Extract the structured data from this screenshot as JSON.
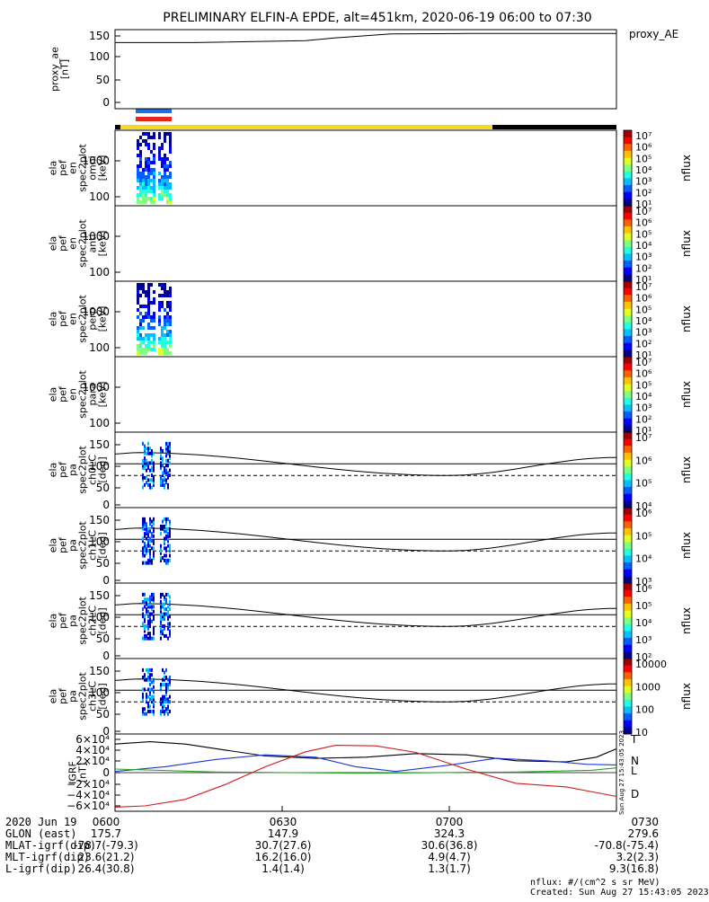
{
  "title": "PRELIMINARY ELFIN-A EPDE, alt=451km, 2020-06-19 06:00 to 07:30",
  "colors": {
    "bar_yellow": "#f5d922",
    "bar_black": "#000000",
    "blue_bar": "#1f6fdc",
    "red_bar": "#e3271b"
  },
  "chart_data": [
    {
      "id": "proxy_ae",
      "type": "line",
      "ylabel": [
        "proxy_ae",
        "[nT]"
      ],
      "yticks": [
        "150",
        "100",
        "50",
        "0"
      ],
      "ylim": [
        -10,
        155
      ],
      "legend": "proxy_AE",
      "x": [
        0.0,
        0.16,
        0.38,
        0.44,
        0.55,
        0.7,
        1.0
      ],
      "y": [
        128,
        128,
        132,
        138,
        146,
        147,
        147
      ]
    },
    {
      "id": "omni",
      "type": "heatmap",
      "ylabel": [
        "ela",
        "pef",
        "en",
        "spec2plot",
        "omni",
        "[keV]"
      ],
      "yticks": [
        "1000",
        "100"
      ],
      "cb_label": "nflux",
      "cb_ticks": [
        "10⁷",
        "10⁶",
        "10⁵",
        "10⁴",
        "10³",
        "10²",
        "10¹"
      ]
    },
    {
      "id": "anti",
      "type": "heatmap",
      "ylabel": [
        "ela",
        "pef",
        "en",
        "spec2plot",
        "anti",
        "[keV]"
      ],
      "yticks": [
        "1000",
        "100"
      ],
      "cb_label": "nflux",
      "cb_ticks": [
        "10⁷",
        "10⁶",
        "10⁵",
        "10⁴",
        "10³",
        "10²",
        "10¹"
      ]
    },
    {
      "id": "perp",
      "type": "heatmap",
      "ylabel": [
        "ela",
        "pef",
        "en",
        "spec2plot",
        "perp",
        "[keV]"
      ],
      "yticks": [
        "1000",
        "100"
      ],
      "cb_label": "nflux",
      "cb_ticks": [
        "10⁷",
        "10⁶",
        "10⁵",
        "10⁴",
        "10³",
        "10²",
        "10¹"
      ]
    },
    {
      "id": "para",
      "type": "heatmap",
      "ylabel": [
        "ela",
        "pef",
        "en",
        "spec2plot",
        "para",
        "[keV]"
      ],
      "yticks": [
        "1000",
        "100"
      ],
      "cb_label": "nflux",
      "cb_ticks": [
        "10⁷",
        "10⁶",
        "10⁵",
        "10⁴",
        "10³",
        "10²",
        "10¹"
      ]
    },
    {
      "id": "ch0LC",
      "type": "heatmap",
      "ylabel": [
        "ela",
        "pef",
        "pa",
        "spec2plot",
        "ch0LC",
        "[deg]"
      ],
      "yticks": [
        "150",
        "100",
        "50",
        "0"
      ],
      "cb_label": "nflux",
      "cb_ticks": [
        "10⁷",
        "10⁶",
        "10⁵",
        "10⁴"
      ]
    },
    {
      "id": "ch1LC",
      "type": "heatmap",
      "ylabel": [
        "ela",
        "pef",
        "pa",
        "spec2plot",
        "ch1LC",
        "[deg]"
      ],
      "yticks": [
        "150",
        "100",
        "50",
        "0"
      ],
      "cb_label": "nflux",
      "cb_ticks": [
        "10⁶",
        "10⁵",
        "10⁴",
        "10³"
      ]
    },
    {
      "id": "ch2LC",
      "type": "heatmap",
      "ylabel": [
        "ela",
        "pef",
        "pa",
        "spec2plot",
        "ch2LC",
        "[deg]"
      ],
      "yticks": [
        "150",
        "100",
        "50",
        "0"
      ],
      "cb_label": "nflux",
      "cb_ticks": [
        "10⁶",
        "10⁵",
        "10⁴",
        "10³",
        "10²"
      ]
    },
    {
      "id": "ch3LC",
      "type": "heatmap",
      "ylabel": [
        "ela",
        "pef",
        "pa",
        "spec2plot",
        "ch3LC",
        "[deg]"
      ],
      "yticks": [
        "150",
        "100",
        "50",
        "0"
      ],
      "cb_label": "nflux",
      "cb_ticks": [
        "10000",
        "1000",
        "100",
        "10"
      ]
    },
    {
      "id": "igrf",
      "type": "line",
      "ylabel": [
        "IGRF",
        "[nT]"
      ],
      "yticks": [
        "6×10⁴",
        "4×10⁴",
        "2×10⁴",
        "0",
        "−2×10⁴",
        "−4×10⁴",
        "−6×10⁴"
      ],
      "ylim": [
        -65000,
        65000
      ],
      "series": [
        {
          "name": "T",
          "color": "#000000",
          "x": [
            0,
            0.07,
            0.14,
            0.22,
            0.3,
            0.4,
            0.5,
            0.6,
            0.7,
            0.8,
            0.9,
            0.96,
            1.0
          ],
          "y": [
            48000,
            52000,
            48000,
            38000,
            28000,
            24000,
            26000,
            32000,
            30000,
            20000,
            18000,
            26000,
            40000
          ]
        },
        {
          "name": "N",
          "color": "#1f35d6",
          "x": [
            0,
            0.1,
            0.2,
            0.3,
            0.4,
            0.48,
            0.56,
            0.66,
            0.76,
            0.86,
            0.94,
            1.0
          ],
          "y": [
            2000,
            10000,
            22000,
            30000,
            26000,
            10000,
            2000,
            12000,
            24000,
            20000,
            14000,
            13000
          ]
        },
        {
          "name": "L",
          "color": "#2aa02a",
          "x": [
            0,
            0.2,
            0.5,
            0.8,
            0.95,
            1.0
          ],
          "y": [
            6000,
            1000,
            -1000,
            1000,
            4000,
            8000
          ]
        },
        {
          "name": "D",
          "color": "#d11a1a",
          "x": [
            0,
            0.06,
            0.14,
            0.22,
            0.3,
            0.38,
            0.44,
            0.52,
            0.6,
            0.7,
            0.8,
            0.9,
            1.0
          ],
          "y": [
            -58000,
            -56000,
            -45000,
            -20000,
            10000,
            35000,
            46000,
            45000,
            34000,
            6000,
            -18000,
            -24000,
            -40000
          ]
        }
      ],
      "vertical_note": "Sun Aug 27 15:43:05 2023"
    }
  ],
  "x_axis": {
    "ticks": [
      "0600",
      "0630",
      "0700",
      "0730"
    ]
  },
  "footer": {
    "rows": [
      {
        "label": "2020 Jun 19",
        "values": [
          "0600",
          "0630",
          "0700",
          "0730"
        ]
      },
      {
        "label": "GLON (east)",
        "values": [
          "175.7",
          "147.9",
          "324.3",
          "279.6"
        ]
      },
      {
        "label": "MLAT-igrf(dip)",
        "values": [
          "-78.7(-79.3)",
          "30.7(27.6)",
          "30.6(36.8)",
          "-70.8(-75.4)"
        ]
      },
      {
        "label": "MLT-igrf(dip)",
        "values": [
          "23.6(21.2)",
          "16.2(16.0)",
          "4.9(4.7)",
          "3.2(2.3)"
        ]
      },
      {
        "label": "L-igrf(dip)",
        "values": [
          "26.4(30.8)",
          "1.4(1.4)",
          "1.3(1.7)",
          "9.3(16.8)"
        ]
      }
    ],
    "units_note": "nflux: #/(cm^2 s sr MeV)",
    "created": "Created: Sun Aug 27 15:43:05 2023"
  }
}
